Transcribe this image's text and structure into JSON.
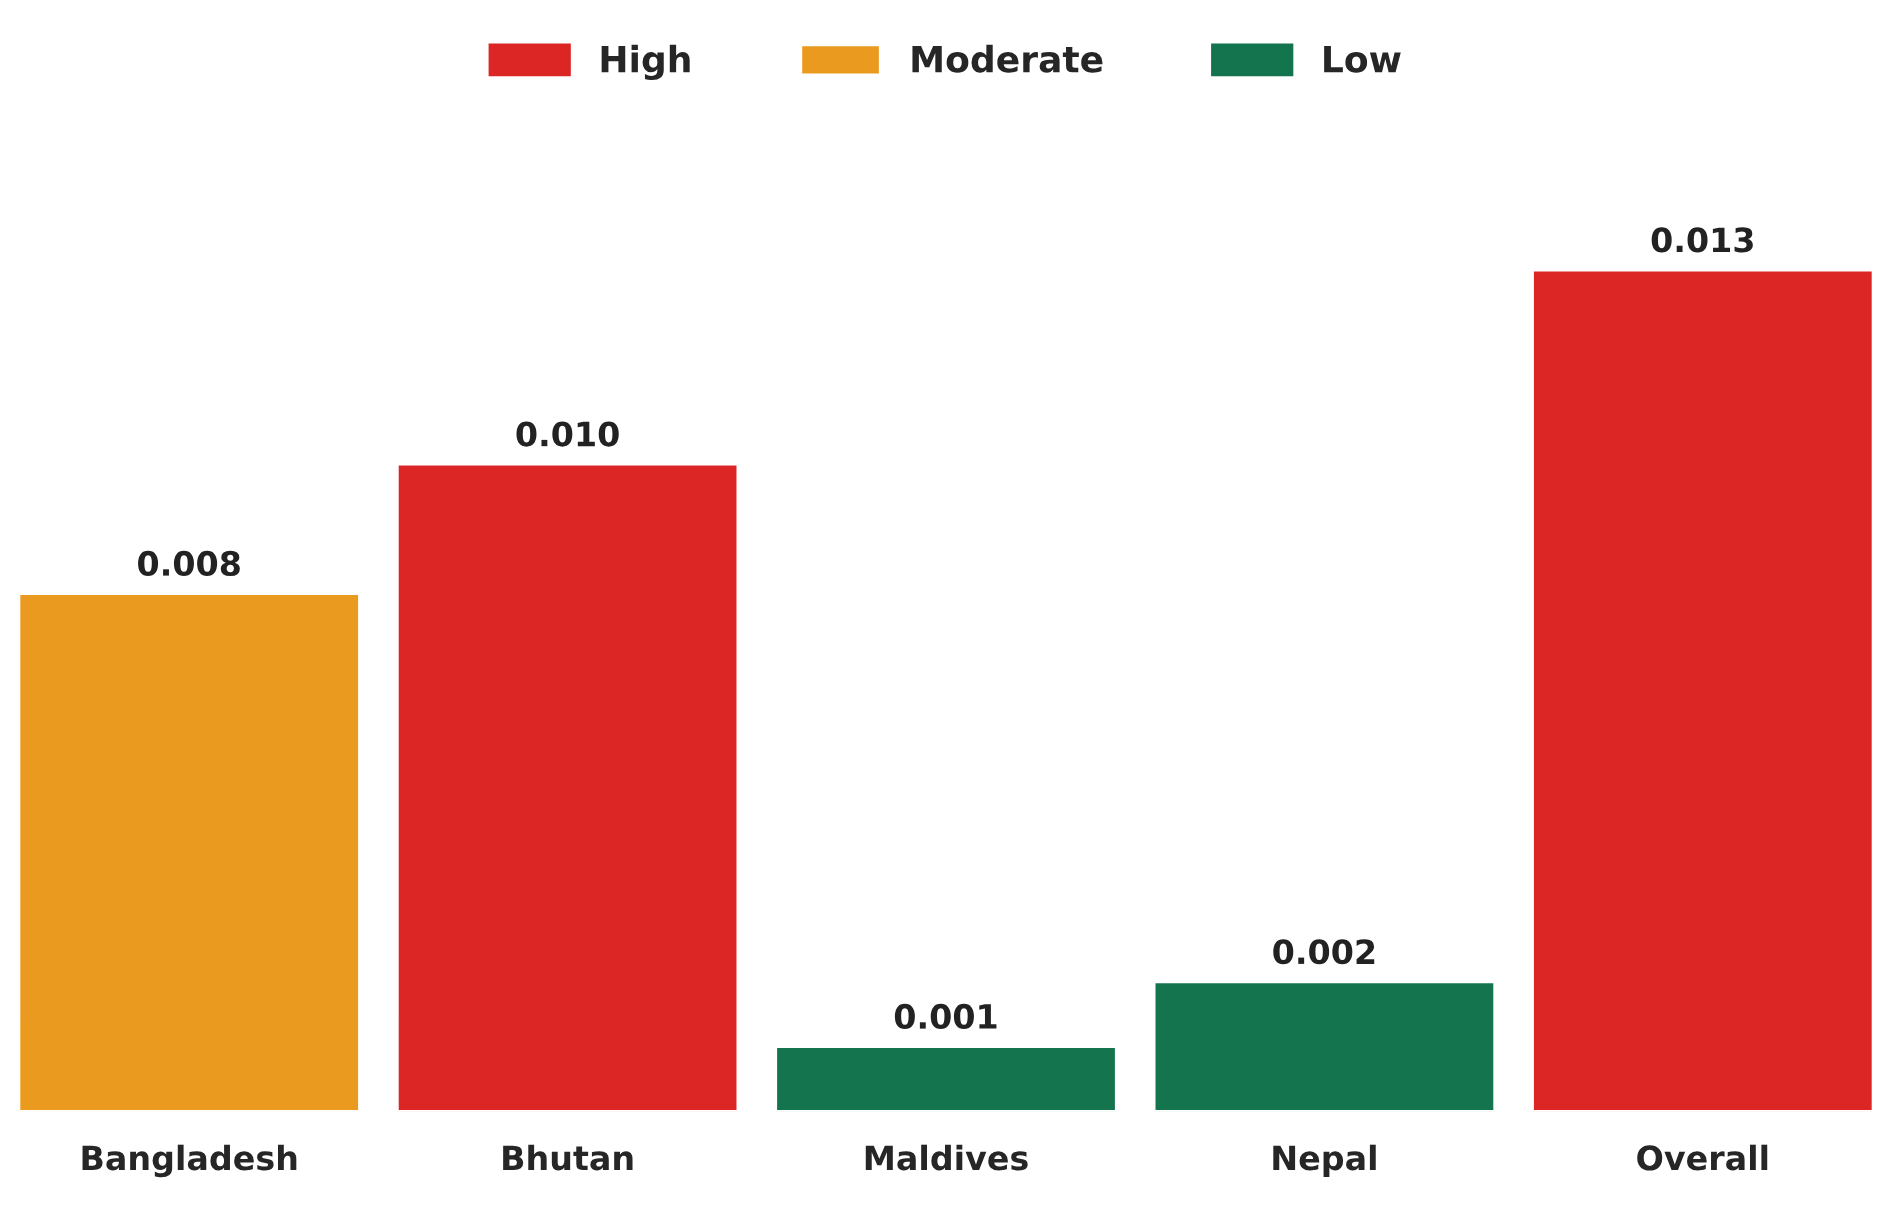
{
  "chart_data": {
    "type": "bar",
    "stacked": true,
    "categories": [
      "Bangladesh",
      "Bhutan",
      "Maldives",
      "Nepal",
      "Overall"
    ],
    "series": [
      {
        "name": "High",
        "color": "#dc2626",
        "values": [
          null,
          0.01,
          null,
          null,
          0.013
        ],
        "value_labels": [
          null,
          "0.010",
          null,
          null,
          "0.013"
        ]
      },
      {
        "name": "Moderate",
        "color": "#ea9a1e",
        "values": [
          0.008,
          null,
          null,
          null,
          null
        ],
        "value_labels": [
          "0.008",
          null,
          null,
          null,
          null
        ]
      },
      {
        "name": "Low",
        "color": "#13744d",
        "values": [
          null,
          null,
          0.001,
          0.002,
          null
        ],
        "value_labels": [
          null,
          null,
          "0.001",
          "0.002",
          null
        ]
      }
    ],
    "legend": "top",
    "tick_labels": "x",
    "grid": false
  }
}
